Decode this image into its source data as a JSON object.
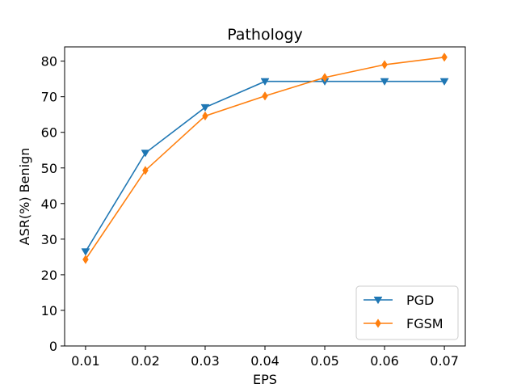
{
  "chart_data": {
    "type": "line",
    "title": "Pathology",
    "xlabel": "EPS",
    "ylabel": "ASR(%) Benign",
    "x": [
      0.01,
      0.02,
      0.03,
      0.04,
      0.05,
      0.06,
      0.07
    ],
    "x_tick_labels": [
      "0.01",
      "0.02",
      "0.03",
      "0.04",
      "0.05",
      "0.06",
      "0.07"
    ],
    "xlim": [
      0.0065,
      0.0735
    ],
    "ylim": [
      0,
      84
    ],
    "y_ticks": [
      0,
      10,
      20,
      30,
      40,
      50,
      60,
      70,
      80
    ],
    "grid": false,
    "legend_position": "lower-right",
    "series": [
      {
        "name": "PGD",
        "marker": "triangle-down",
        "color": "#1f77b4",
        "values": [
          26.5,
          54.2,
          67.0,
          74.3,
          74.3,
          74.3,
          74.3
        ]
      },
      {
        "name": "FGSM",
        "marker": "diamond",
        "color": "#ff7f0e",
        "values": [
          24.3,
          49.3,
          64.6,
          70.2,
          75.4,
          79.0,
          81.1
        ]
      }
    ]
  }
}
